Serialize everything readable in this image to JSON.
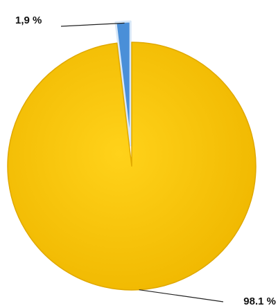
{
  "chart_data": {
    "type": "pie",
    "values": [
      1.9,
      98.1
    ],
    "value_labels": [
      "1,9 %",
      "98.1 %"
    ],
    "colors": [
      "#4a8fd8",
      "#f7c300"
    ],
    "explode": [
      true,
      false
    ]
  }
}
